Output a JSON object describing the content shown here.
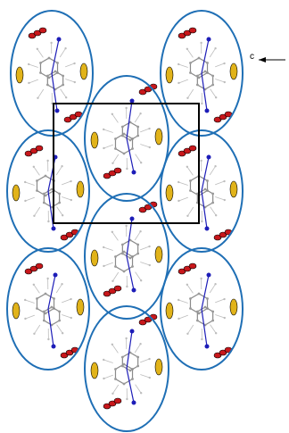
{
  "axis": {
    "label": "c"
  },
  "colors": {
    "ellipse": "#1f6fb5",
    "unit_cell": "#000000",
    "oxygen": "#c8171b",
    "sulfur": "#e1b31a",
    "nitrogen": "#1d1db8",
    "bond": "#8a8a8a",
    "hydrogen": "#bdbdbd"
  },
  "molecule_count": 9
}
